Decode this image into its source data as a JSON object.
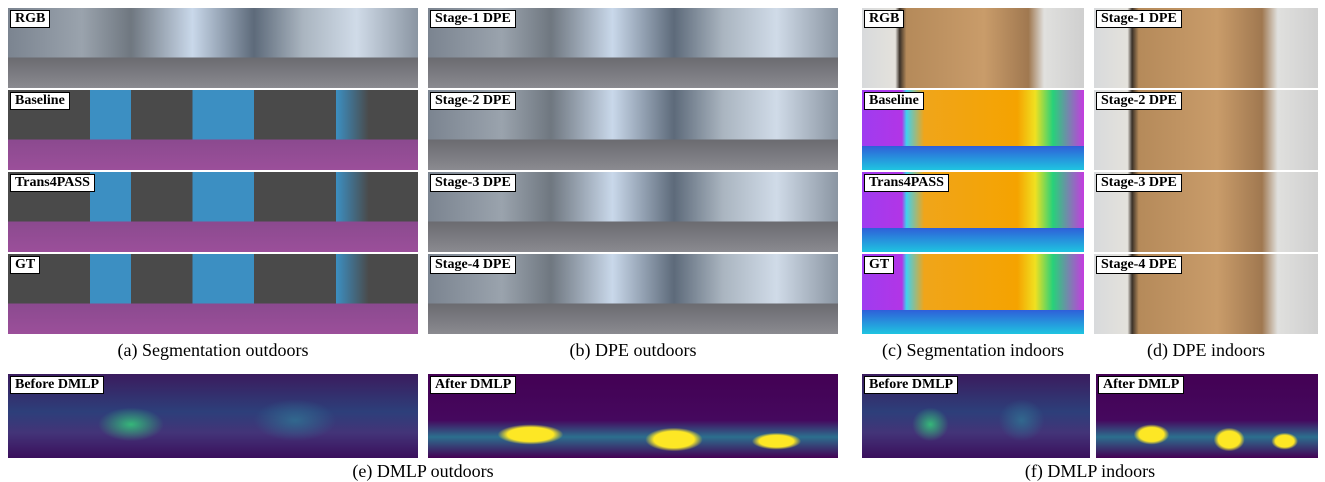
{
  "panels": [
    {
      "caption": "(a) Segmentation outdoors",
      "rows": [
        "RGB",
        "Baseline",
        "Trans4PASS",
        "GT"
      ]
    },
    {
      "caption": "(b) DPE outdoors",
      "rows": [
        "Stage-1 DPE",
        "Stage-2 DPE",
        "Stage-3 DPE",
        "Stage-4 DPE"
      ]
    },
    {
      "caption": "(c) Segmentation indoors",
      "rows": [
        "RGB",
        "Baseline",
        "Trans4PASS",
        "GT"
      ]
    },
    {
      "caption": "(d) DPE indoors",
      "rows": [
        "Stage-1 DPE",
        "Stage-2 DPE",
        "Stage-3 DPE",
        "Stage-4 DPE"
      ]
    }
  ],
  "dmlp": [
    {
      "caption": "(e) DMLP outdoors",
      "maps": [
        "Before DMLP",
        "After DMLP"
      ]
    },
    {
      "caption": "(f) DMLP indoors",
      "maps": [
        "Before DMLP",
        "After DMLP"
      ]
    }
  ]
}
